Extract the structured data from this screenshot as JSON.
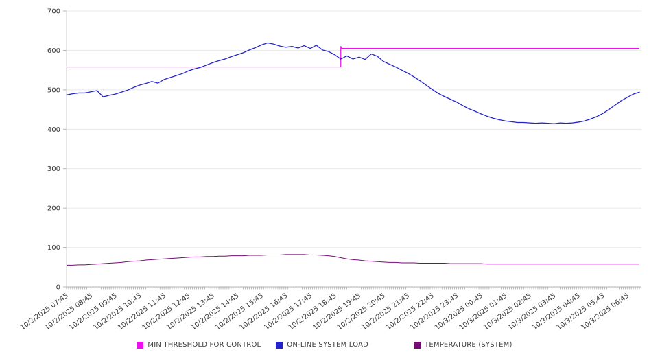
{
  "chart_data": {
    "type": "line",
    "title": "",
    "xlabel": "",
    "ylabel": "",
    "ylim": [
      0,
      700
    ],
    "y_ticks": [
      700,
      600,
      500,
      400,
      300,
      200,
      100,
      0
    ],
    "grid": "horizontal",
    "legend_position": "bottom",
    "x_interval_minutes": 15,
    "x_tick_labels": [
      "10/2/2025 07:45",
      "10/2/2025 08:45",
      "10/2/2025 09:45",
      "10/2/2025 10:45",
      "10/2/2025 11:45",
      "10/2/2025 12:45",
      "10/2/2025 13:45",
      "10/2/2025 14:45",
      "10/2/2025 15:45",
      "10/2/2025 16:45",
      "10/2/2025 17:45",
      "10/2/2025 18:45",
      "10/2/2025 19:45",
      "10/2/2025 20:45",
      "10/2/2025 21:45",
      "10/2/2025 22:45",
      "10/2/2025 23:45",
      "10/3/2025 00:45",
      "10/3/2025 01:45",
      "10/3/2025 02:45",
      "10/3/2025 03:45",
      "10/3/2025 04:45",
      "10/3/2025 05:45",
      "10/3/2025 06:45"
    ],
    "series": [
      {
        "name": "MIN THRESHOLD FOR CONTROL",
        "color": "#ee0eee",
        "type": "step",
        "before_value": 558,
        "after_value": 605,
        "spike_value": 610,
        "step_time": "10/2/2025 19:00",
        "step_index": 45
      },
      {
        "name": "ON-LINE SYSTEM LOAD",
        "color": "#2323cd",
        "type": "line",
        "values": [
          487,
          490,
          492,
          492,
          495,
          498,
          482,
          486,
          489,
          494,
          499,
          506,
          512,
          516,
          521,
          517,
          526,
          531,
          536,
          541,
          548,
          553,
          557,
          563,
          569,
          574,
          578,
          584,
          589,
          594,
          601,
          607,
          614,
          619,
          616,
          611,
          608,
          610,
          606,
          612,
          605,
          613,
          601,
          597,
          589,
          578,
          586,
          578,
          583,
          577,
          591,
          585,
          572,
          565,
          558,
          550,
          542,
          533,
          523,
          512,
          501,
          491,
          483,
          476,
          469,
          460,
          452,
          446,
          439,
          433,
          428,
          424,
          421,
          419,
          417,
          417,
          416,
          415,
          416,
          415,
          414,
          416,
          415,
          416,
          418,
          421,
          426,
          432,
          440,
          450,
          461,
          472,
          481,
          489,
          494
        ]
      },
      {
        "name": "TEMPERATURE (SYSTEM)",
        "color": "#760c76",
        "type": "line",
        "values": [
          55,
          55,
          56,
          56,
          57,
          58,
          59,
          60,
          61,
          62,
          64,
          65,
          66,
          68,
          69,
          70,
          71,
          72,
          73,
          74,
          75,
          76,
          76,
          77,
          77,
          78,
          78,
          79,
          79,
          79,
          80,
          80,
          80,
          81,
          81,
          81,
          82,
          82,
          82,
          82,
          81,
          81,
          80,
          79,
          77,
          74,
          71,
          69,
          68,
          66,
          65,
          64,
          63,
          62,
          62,
          61,
          61,
          61,
          60,
          60,
          60,
          60,
          60,
          59,
          59,
          59,
          59,
          59,
          59,
          58,
          58,
          58,
          58,
          58,
          58,
          58,
          58,
          58,
          58,
          58,
          58,
          58,
          58,
          58,
          58,
          58,
          58,
          58,
          58,
          58,
          58,
          58,
          58,
          58,
          58
        ]
      }
    ],
    "colors": {
      "background": "#ffffff",
      "grid": "#e9e9e9",
      "axis": "#b3b3b3",
      "minor_tick": "#999999",
      "text": "#3c3c3c"
    }
  }
}
